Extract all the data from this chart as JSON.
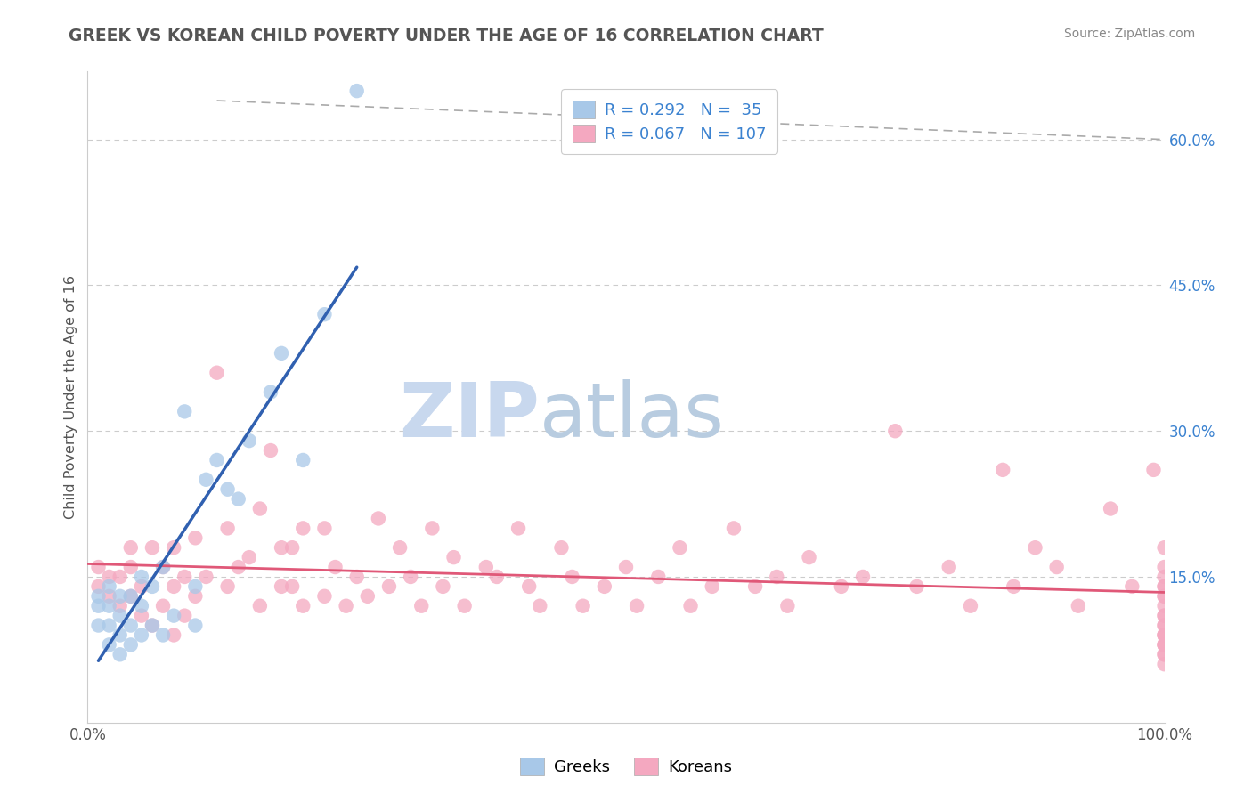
{
  "title": "GREEK VS KOREAN CHILD POVERTY UNDER THE AGE OF 16 CORRELATION CHART",
  "source": "Source: ZipAtlas.com",
  "ylabel": "Child Poverty Under the Age of 16",
  "yticks": [
    0.0,
    0.15,
    0.3,
    0.45,
    0.6
  ],
  "ytick_labels": [
    "",
    "15.0%",
    "30.0%",
    "45.0%",
    "60.0%"
  ],
  "xlim": [
    0.0,
    1.0
  ],
  "ylim": [
    0.02,
    0.67
  ],
  "greek_R": 0.292,
  "greek_N": 35,
  "korean_R": 0.067,
  "korean_N": 107,
  "greek_color": "#a8c8e8",
  "korean_color": "#f4a8c0",
  "greek_line_color": "#3060b0",
  "korean_line_color": "#e05878",
  "legend_text_color": "#3b82d0",
  "watermark_zip": "ZIP",
  "watermark_atlas": "atlas",
  "watermark_color_zip": "#c8d8ee",
  "watermark_color_atlas": "#b8cce0",
  "grid_color": "#cccccc",
  "spine_color": "#cccccc",
  "title_color": "#555555",
  "source_color": "#888888",
  "ylabel_color": "#555555",
  "tick_color_y": "#3b82d0",
  "tick_color_x": "#555555",
  "greek_x": [
    0.01,
    0.01,
    0.01,
    0.02,
    0.02,
    0.02,
    0.02,
    0.03,
    0.03,
    0.03,
    0.03,
    0.04,
    0.04,
    0.04,
    0.05,
    0.05,
    0.05,
    0.06,
    0.06,
    0.07,
    0.07,
    0.08,
    0.09,
    0.1,
    0.1,
    0.11,
    0.12,
    0.13,
    0.14,
    0.15,
    0.17,
    0.18,
    0.2,
    0.22,
    0.25
  ],
  "greek_y": [
    0.1,
    0.12,
    0.13,
    0.08,
    0.1,
    0.12,
    0.14,
    0.07,
    0.09,
    0.11,
    0.13,
    0.08,
    0.1,
    0.13,
    0.09,
    0.12,
    0.15,
    0.1,
    0.14,
    0.09,
    0.16,
    0.11,
    0.32,
    0.1,
    0.14,
    0.25,
    0.27,
    0.24,
    0.23,
    0.29,
    0.34,
    0.38,
    0.27,
    0.42,
    0.65
  ],
  "korean_x": [
    0.01,
    0.01,
    0.02,
    0.02,
    0.03,
    0.03,
    0.04,
    0.04,
    0.04,
    0.05,
    0.05,
    0.06,
    0.06,
    0.07,
    0.07,
    0.08,
    0.08,
    0.08,
    0.09,
    0.09,
    0.1,
    0.1,
    0.11,
    0.12,
    0.13,
    0.13,
    0.14,
    0.15,
    0.16,
    0.16,
    0.17,
    0.18,
    0.18,
    0.19,
    0.19,
    0.2,
    0.2,
    0.22,
    0.22,
    0.23,
    0.24,
    0.25,
    0.26,
    0.27,
    0.28,
    0.29,
    0.3,
    0.31,
    0.32,
    0.33,
    0.34,
    0.35,
    0.37,
    0.38,
    0.4,
    0.41,
    0.42,
    0.44,
    0.45,
    0.46,
    0.48,
    0.5,
    0.51,
    0.53,
    0.55,
    0.56,
    0.58,
    0.6,
    0.62,
    0.64,
    0.65,
    0.67,
    0.7,
    0.72,
    0.75,
    0.77,
    0.8,
    0.82,
    0.85,
    0.86,
    0.88,
    0.9,
    0.92,
    0.95,
    0.97,
    0.99,
    1.0,
    1.0,
    1.0,
    1.0,
    1.0,
    1.0,
    1.0,
    1.0,
    1.0,
    1.0,
    1.0,
    1.0,
    1.0,
    1.0,
    1.0,
    1.0,
    1.0,
    1.0,
    1.0,
    1.0,
    1.0
  ],
  "korean_y": [
    0.14,
    0.16,
    0.13,
    0.15,
    0.12,
    0.15,
    0.13,
    0.16,
    0.18,
    0.11,
    0.14,
    0.1,
    0.18,
    0.12,
    0.16,
    0.09,
    0.14,
    0.18,
    0.11,
    0.15,
    0.13,
    0.19,
    0.15,
    0.36,
    0.14,
    0.2,
    0.16,
    0.17,
    0.12,
    0.22,
    0.28,
    0.14,
    0.18,
    0.14,
    0.18,
    0.12,
    0.2,
    0.13,
    0.2,
    0.16,
    0.12,
    0.15,
    0.13,
    0.21,
    0.14,
    0.18,
    0.15,
    0.12,
    0.2,
    0.14,
    0.17,
    0.12,
    0.16,
    0.15,
    0.2,
    0.14,
    0.12,
    0.18,
    0.15,
    0.12,
    0.14,
    0.16,
    0.12,
    0.15,
    0.18,
    0.12,
    0.14,
    0.2,
    0.14,
    0.15,
    0.12,
    0.17,
    0.14,
    0.15,
    0.3,
    0.14,
    0.16,
    0.12,
    0.26,
    0.14,
    0.18,
    0.16,
    0.12,
    0.22,
    0.14,
    0.26,
    0.14,
    0.15,
    0.18,
    0.08,
    0.11,
    0.13,
    0.16,
    0.09,
    0.12,
    0.14,
    0.1,
    0.07,
    0.09,
    0.11,
    0.08,
    0.13,
    0.1,
    0.07,
    0.09,
    0.06,
    0.08
  ]
}
